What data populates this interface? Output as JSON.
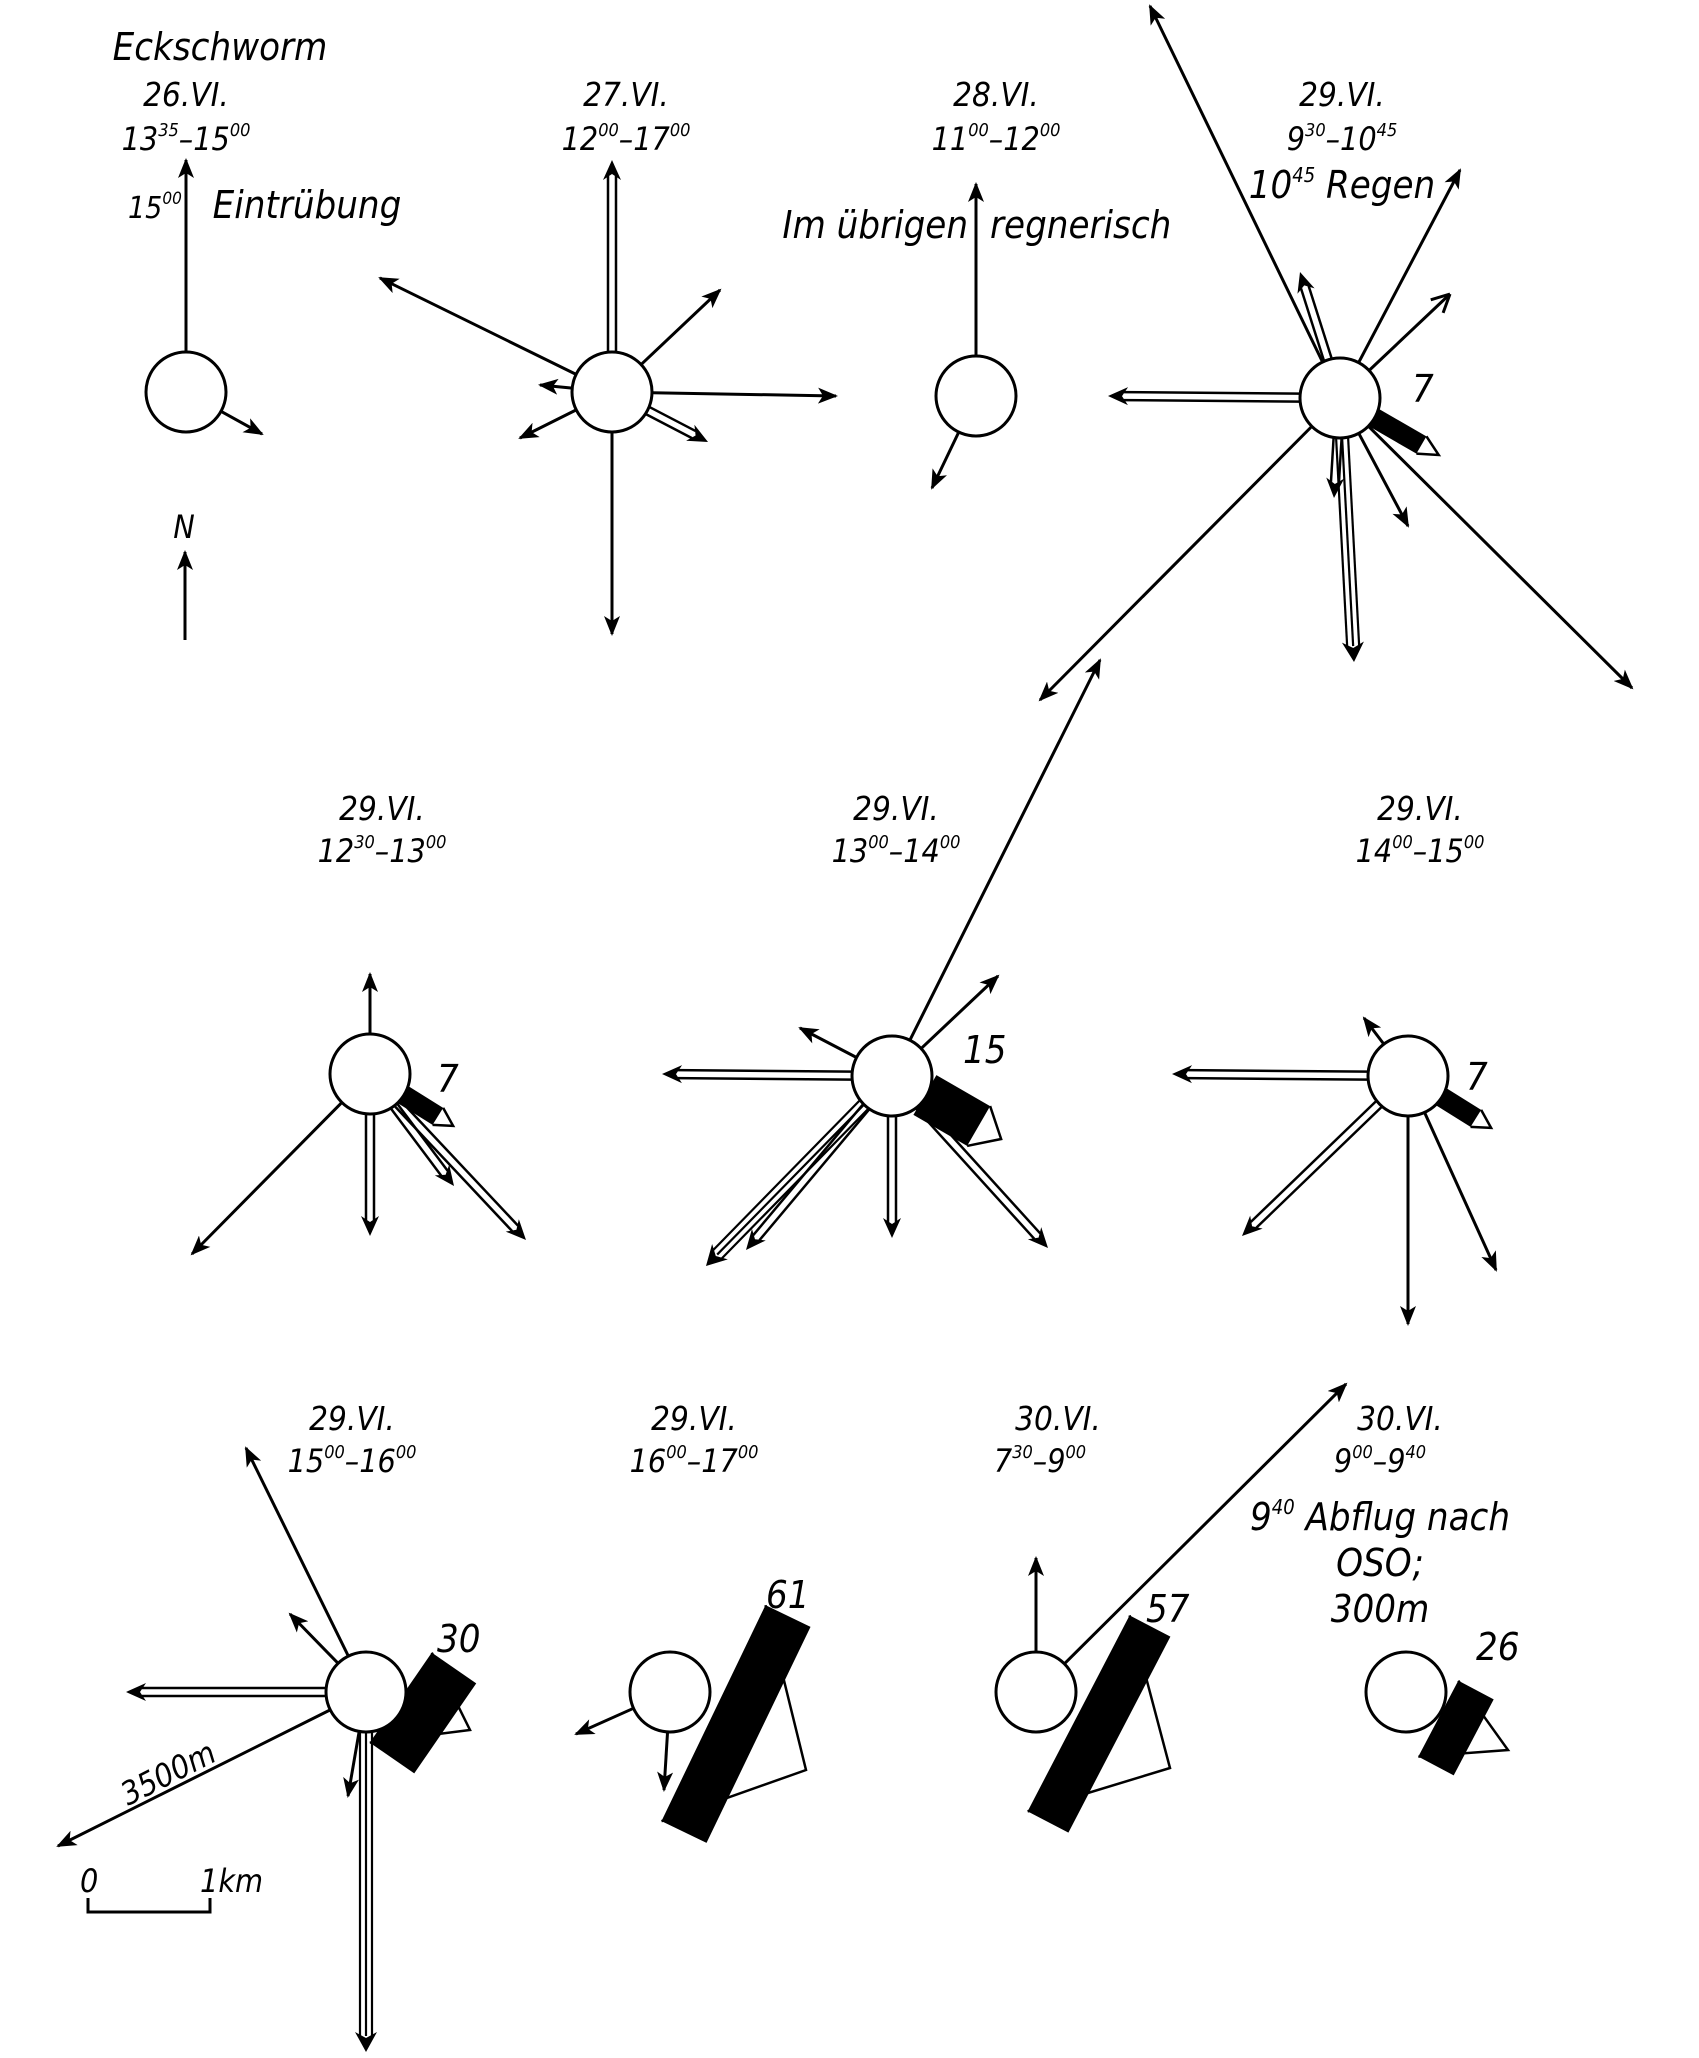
{
  "location": "Eckschworm",
  "north_label": "N",
  "scale": {
    "zero": "0",
    "one": "1km"
  },
  "distance_label": "3500m",
  "panels": [
    {
      "id": "p1",
      "date": "26.VI.",
      "time_start": "13",
      "time_start_min": "35",
      "time_end": "15",
      "time_end_min": "00",
      "notes": [
        {
          "text_h": "15",
          "text_m": "00",
          "text_rest": " Eintrübung"
        }
      ]
    },
    {
      "id": "p2",
      "date": "27.VI.",
      "time_start": "12",
      "time_start_min": "00",
      "time_end": "17",
      "time_end_min": "00"
    },
    {
      "id": "p3",
      "date": "28.VI.",
      "time_start": "11",
      "time_start_min": "00",
      "time_end": "12",
      "time_end_min": "00",
      "notes": [
        {
          "left": "Im übrigen",
          "right": "regnerisch"
        }
      ]
    },
    {
      "id": "p4",
      "date": "29.VI.",
      "time_start": "9",
      "time_start_min": "30",
      "time_end": "10",
      "time_end_min": "45",
      "notes": [
        {
          "text_h": "10",
          "text_m": "45",
          "text_rest": " Regen"
        }
      ],
      "count": "7"
    },
    {
      "id": "p5",
      "date": "29.VI.",
      "time_start": "12",
      "time_start_min": "30",
      "time_end": "13",
      "time_end_min": "00",
      "count": "7"
    },
    {
      "id": "p6",
      "date": "29.VI.",
      "time_start": "13",
      "time_start_min": "00",
      "time_end": "14",
      "time_end_min": "00",
      "count": "15"
    },
    {
      "id": "p7",
      "date": "29.VI.",
      "time_start": "14",
      "time_start_min": "00",
      "time_end": "15",
      "time_end_min": "00",
      "count": "7"
    },
    {
      "id": "p8",
      "date": "29.VI.",
      "time_start": "15",
      "time_start_min": "00",
      "time_end": "16",
      "time_end_min": "00",
      "count": "30"
    },
    {
      "id": "p9",
      "date": "29.VI.",
      "time_start": "16",
      "time_start_min": "00",
      "time_end": "17",
      "time_end_min": "00",
      "count": "61"
    },
    {
      "id": "p10",
      "date": "30.VI.",
      "time_start": "7",
      "time_start_min": "30",
      "time_end": "9",
      "time_end_min": "00",
      "count": "57"
    },
    {
      "id": "p11",
      "date": "30.VI.",
      "time_start": "9",
      "time_start_min": "00",
      "time_end": "9",
      "time_end_min": "40",
      "count": "26",
      "notes": [
        {
          "text_h": "9",
          "text_m": "40",
          "text_rest": " Abflug nach"
        },
        {
          "line": "OSO;"
        },
        {
          "line": "300m"
        }
      ]
    }
  ]
}
